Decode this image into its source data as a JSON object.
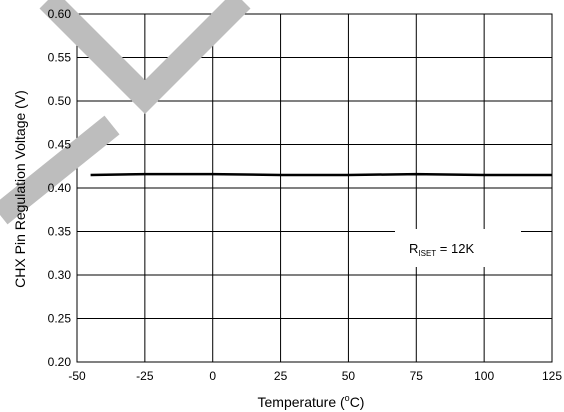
{
  "chart_data": {
    "type": "line",
    "title": "",
    "xlabel": "Temperature (°C)",
    "xlabel_parts": {
      "before": "Temperature (",
      "sup": "o",
      "after": "C)"
    },
    "ylabel": "CHX Pin Regulation Voltage (V)",
    "xlim": [
      -50,
      125
    ],
    "ylim": [
      0.2,
      0.6
    ],
    "x_ticks": [
      -50,
      -25,
      0,
      25,
      50,
      75,
      100,
      125
    ],
    "x_tick_labels": [
      "-50",
      "-25",
      "0",
      "25",
      "50",
      "75",
      "100",
      "125"
    ],
    "y_ticks": [
      0.2,
      0.25,
      0.3,
      0.35,
      0.4,
      0.45,
      0.5,
      0.55,
      0.6
    ],
    "y_tick_labels": [
      "0.20",
      "0.25",
      "0.30",
      "0.35",
      "0.40",
      "0.45",
      "0.50",
      "0.55",
      "0.60"
    ],
    "grid": true,
    "series": [
      {
        "x": [
          -45,
          -25,
          0,
          25,
          50,
          75,
          100,
          125
        ],
        "y": [
          0.415,
          0.416,
          0.416,
          0.415,
          0.415,
          0.416,
          0.415,
          0.415
        ]
      }
    ],
    "annotation": {
      "main": "R",
      "sub": "ISET",
      "rest": " = 12K"
    },
    "colors": {
      "line": "#000000",
      "grid": "#000000",
      "watermark": "#bdbdbd"
    }
  }
}
